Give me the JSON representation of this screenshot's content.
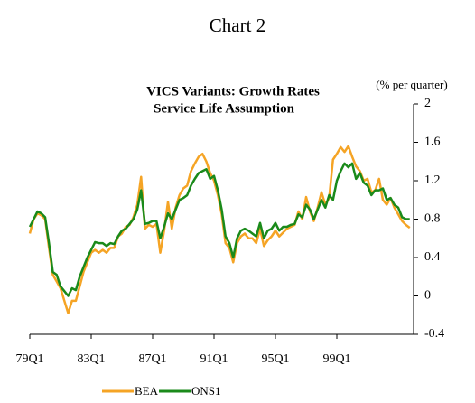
{
  "page_title": "Chart 2",
  "chart_data": {
    "type": "line",
    "title": "VICS Variants: Growth Rates",
    "subtitle": "Service Life Assumption",
    "y_axis_label": "(% per quarter)",
    "categories": [
      "79Q1",
      null,
      null,
      null,
      null,
      null,
      null,
      null,
      null,
      null,
      null,
      null,
      null,
      null,
      null,
      null,
      "83Q1",
      null,
      null,
      null,
      null,
      null,
      null,
      null,
      null,
      null,
      null,
      null,
      null,
      null,
      null,
      null,
      "87Q1",
      null,
      null,
      null,
      null,
      null,
      null,
      null,
      null,
      null,
      null,
      null,
      null,
      null,
      null,
      null,
      "91Q1",
      null,
      null,
      null,
      null,
      null,
      null,
      null,
      null,
      null,
      null,
      null,
      null,
      null,
      null,
      null,
      "95Q1",
      null,
      null,
      null,
      null,
      null,
      null,
      null,
      null,
      null,
      null,
      null,
      null,
      null,
      null,
      null,
      "99Q1",
      null,
      null,
      null,
      null,
      null,
      null,
      null,
      null,
      null,
      null,
      null,
      null,
      null,
      null,
      null,
      null,
      null,
      null,
      null
    ],
    "series": [
      {
        "name": "BEA",
        "color": "#f5a425",
        "values": [
          0.65,
          0.8,
          0.86,
          0.84,
          0.8,
          0.5,
          0.22,
          0.15,
          0.08,
          -0.05,
          -0.18,
          -0.05,
          -0.05,
          0.1,
          0.25,
          0.35,
          0.45,
          0.48,
          0.45,
          0.48,
          0.45,
          0.5,
          0.5,
          0.62,
          0.65,
          0.72,
          0.74,
          0.82,
          0.95,
          1.24,
          0.7,
          0.74,
          0.72,
          0.75,
          0.45,
          0.68,
          0.98,
          0.7,
          0.92,
          1.05,
          1.12,
          1.15,
          1.3,
          1.38,
          1.45,
          1.48,
          1.4,
          1.28,
          1.2,
          1.05,
          0.85,
          0.55,
          0.5,
          0.35,
          0.55,
          0.62,
          0.65,
          0.6,
          0.6,
          0.55,
          0.7,
          0.52,
          0.58,
          0.62,
          0.68,
          0.62,
          0.66,
          0.7,
          0.72,
          0.74,
          0.88,
          0.8,
          1.03,
          0.88,
          0.78,
          0.92,
          1.08,
          0.95,
          1.02,
          1.42,
          1.48,
          1.55,
          1.5,
          1.56,
          1.45,
          1.35,
          1.3,
          1.2,
          1.22,
          1.08,
          1.1,
          1.22,
          1.0,
          0.95,
          1.02,
          0.92,
          0.85,
          0.78,
          0.74,
          0.71
        ]
      },
      {
        "name": "ONS1",
        "color": "#1a8a1a",
        "values": [
          0.72,
          0.8,
          0.88,
          0.86,
          0.82,
          0.55,
          0.25,
          0.22,
          0.1,
          0.05,
          0.0,
          0.08,
          0.06,
          0.2,
          0.3,
          0.4,
          0.48,
          0.56,
          0.55,
          0.55,
          0.52,
          0.55,
          0.54,
          0.62,
          0.68,
          0.7,
          0.75,
          0.8,
          0.9,
          1.1,
          0.75,
          0.76,
          0.78,
          0.78,
          0.6,
          0.72,
          0.86,
          0.8,
          0.9,
          1.0,
          1.02,
          1.05,
          1.15,
          1.22,
          1.28,
          1.3,
          1.32,
          1.22,
          1.25,
          1.1,
          0.9,
          0.62,
          0.55,
          0.4,
          0.6,
          0.68,
          0.7,
          0.68,
          0.65,
          0.62,
          0.76,
          0.6,
          0.68,
          0.7,
          0.76,
          0.68,
          0.72,
          0.72,
          0.74,
          0.75,
          0.85,
          0.82,
          0.95,
          0.9,
          0.8,
          0.9,
          1.0,
          0.92,
          1.05,
          1.0,
          1.2,
          1.3,
          1.38,
          1.34,
          1.38,
          1.22,
          1.28,
          1.18,
          1.15,
          1.05,
          1.1,
          1.1,
          1.12,
          1.0,
          1.02,
          0.95,
          0.92,
          0.82,
          0.8,
          0.8
        ]
      }
    ],
    "ylim": [
      -0.4,
      2
    ],
    "yticks": [
      -0.4,
      0,
      0.4,
      0.8,
      1.2,
      1.6,
      2
    ],
    "legend": "bottom"
  }
}
